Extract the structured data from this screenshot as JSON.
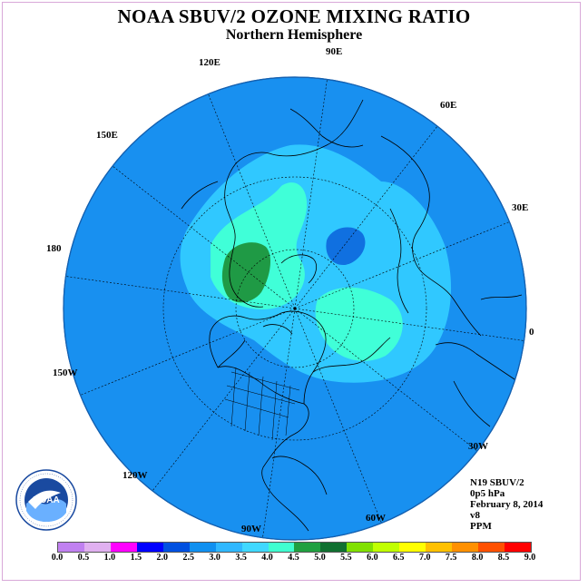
{
  "title": "NOAA SBUV/2 OZONE MIXING RATIO",
  "subtitle": "Northern Hemisphere",
  "longitude_labels": {
    "lon_90e": "90E",
    "lon_60e": "60E",
    "lon_30e": "30E",
    "lon_0": "0",
    "lon_30w": "30W",
    "lon_60w": "60W",
    "lon_90w": "90W",
    "lon_120w": "120W",
    "lon_150w": "150W",
    "lon_180": "180",
    "lon_150e": "150E",
    "lon_120e": "120E"
  },
  "info": {
    "instrument": "N19 SBUV/2",
    "level": "0p5 hPa",
    "date": "February 8, 2014",
    "version": "v8",
    "units": "PPM"
  },
  "logo": {
    "text": "NOAA",
    "ring_text": "NATIONAL OCEANIC AND ATMOSPHERIC ADMINISTRATION · U.S. DEPARTMENT OF COMMERCE"
  },
  "colorbar": {
    "ticks": [
      "0.0",
      "0.5",
      "1.0",
      "1.5",
      "2.0",
      "2.5",
      "3.0",
      "3.5",
      "4.0",
      "4.5",
      "5.0",
      "5.5",
      "6.0",
      "6.5",
      "7.0",
      "7.5",
      "8.0",
      "8.5",
      "9.0"
    ],
    "colors": [
      "#c080f0",
      "#e0b0f0",
      "#ff00ff",
      "#0000ff",
      "#0050e0",
      "#1090f0",
      "#30b8ff",
      "#40d8ff",
      "#40ffd0",
      "#20a040",
      "#107030",
      "#80e000",
      "#c0ff00",
      "#ffff00",
      "#ffc000",
      "#ff9000",
      "#ff5000",
      "#ff0000",
      "#8b5a3c"
    ]
  },
  "map_colors": {
    "background": "#1890f0",
    "level_3_0": "#30c8ff",
    "level_3_5": "#40ffd8",
    "level_4_5": "#1f9a45",
    "level_low": "#1070e0"
  }
}
